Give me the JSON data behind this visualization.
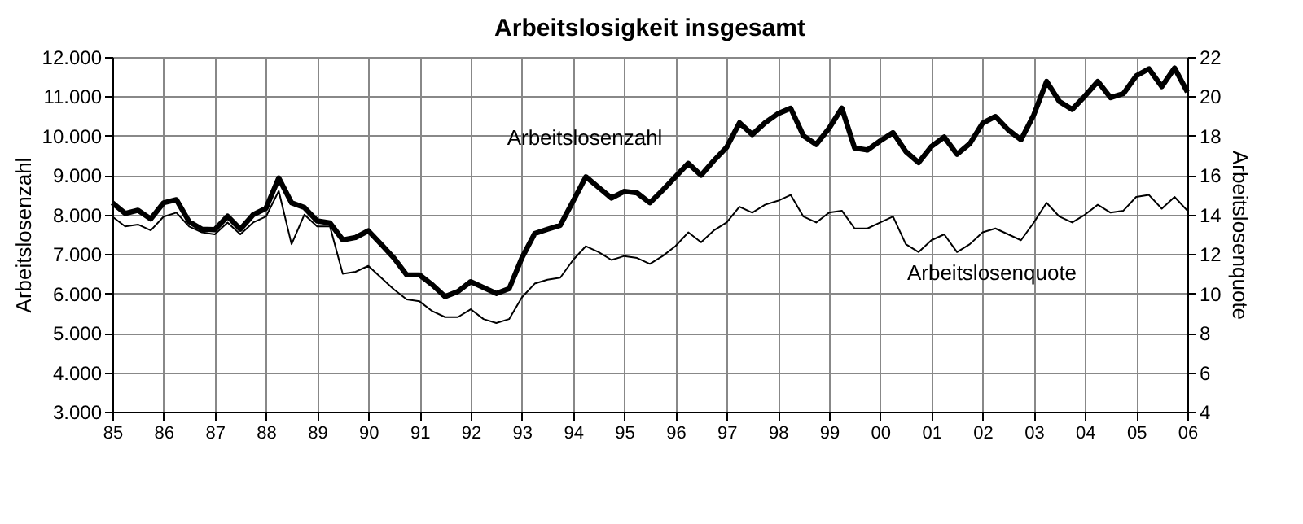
{
  "chart_data": {
    "type": "line",
    "title": "Arbeitslosigkeit insgesamt",
    "ylabel": "Arbeitslosenzahl",
    "y2label": "Arbeitslosenquote",
    "x": [
      1985,
      1985.25,
      1985.5,
      1985.75,
      1986,
      1986.25,
      1986.5,
      1986.75,
      1987,
      1987.25,
      1987.5,
      1987.75,
      1988,
      1988.25,
      1988.5,
      1988.75,
      1989,
      1989.25,
      1989.5,
      1989.75,
      1990,
      1990.25,
      1990.5,
      1990.75,
      1991,
      1991.25,
      1991.5,
      1991.75,
      1992,
      1992.25,
      1992.5,
      1992.75,
      1993,
      1993.25,
      1993.5,
      1993.75,
      1994,
      1994.25,
      1994.5,
      1994.75,
      1995,
      1995.25,
      1995.5,
      1995.75,
      1996,
      1996.25,
      1996.5,
      1996.75,
      1997,
      1997.25,
      1997.5,
      1997.75,
      1998,
      1998.25,
      1998.5,
      1998.75,
      1999,
      1999.25,
      1999.5,
      1999.75,
      2000,
      2000.25,
      2000.5,
      2000.75,
      2001,
      2001.25,
      2001.5,
      2001.75,
      2002,
      2002.25,
      2002.5,
      2002.75,
      2003,
      2003.25,
      2003.5,
      2003.75,
      2004,
      2004.25,
      2004.5,
      2004.75,
      2005,
      2005.25,
      2005.5,
      2005.75,
      2006
    ],
    "series": [
      {
        "name": "Arbeitslosenzahl",
        "color": "#000000",
        "values": [
          8300,
          8030,
          8110,
          7890,
          8300,
          8380,
          7820,
          7630,
          7620,
          7960,
          7630,
          8000,
          8160,
          8930,
          8300,
          8180,
          7840,
          7790,
          7360,
          7420,
          7590,
          7250,
          6900,
          6470,
          6470,
          6220,
          5920,
          6050,
          6300,
          6150,
          6000,
          6120,
          6900,
          7520,
          7630,
          7730,
          8340,
          8960,
          8690,
          8420,
          8590,
          8550,
          8300,
          8620,
          8960,
          9300,
          9000,
          9370,
          9710,
          10330,
          10030,
          10330,
          10560,
          10700,
          10000,
          9780,
          10190,
          10700,
          9690,
          9640,
          9870,
          10080,
          9600,
          9320,
          9730,
          9970,
          9530,
          9800,
          10320,
          10490,
          10150,
          9900,
          10530,
          11380,
          10870,
          10670,
          11010,
          11380,
          10970,
          11070,
          11520,
          11700,
          11250,
          11720,
          11110
        ]
      },
      {
        "name": "Arbeitslosenquote",
        "color": "#000000",
        "axis": "y2",
        "values": [
          13.9,
          13.4,
          13.5,
          13.2,
          13.9,
          14.1,
          13.4,
          13.1,
          13.0,
          13.6,
          13.0,
          13.6,
          13.9,
          15.2,
          12.5,
          14.0,
          13.4,
          13.4,
          11.0,
          11.1,
          11.4,
          10.8,
          10.2,
          9.7,
          9.6,
          9.1,
          8.8,
          8.8,
          9.2,
          8.7,
          8.5,
          8.7,
          9.8,
          10.5,
          10.7,
          10.8,
          11.7,
          12.4,
          12.1,
          11.7,
          11.9,
          11.8,
          11.5,
          11.9,
          12.4,
          13.1,
          12.6,
          13.2,
          13.6,
          14.4,
          14.1,
          14.5,
          14.7,
          15.0,
          13.9,
          13.6,
          14.1,
          14.2,
          13.3,
          13.3,
          13.6,
          13.9,
          12.5,
          12.1,
          12.7,
          13.0,
          12.1,
          12.5,
          13.1,
          13.3,
          13.0,
          12.7,
          13.6,
          14.6,
          13.9,
          13.6,
          14.0,
          14.5,
          14.1,
          14.2,
          14.9,
          15.0,
          14.3,
          14.9,
          14.2
        ]
      }
    ],
    "xlim": [
      1985,
      2006
    ],
    "xticks": [
      {
        "value": 1985,
        "label": "85"
      },
      {
        "value": 1986,
        "label": "86"
      },
      {
        "value": 1987,
        "label": "87"
      },
      {
        "value": 1988,
        "label": "88"
      },
      {
        "value": 1989,
        "label": "89"
      },
      {
        "value": 1990,
        "label": "90"
      },
      {
        "value": 1991,
        "label": "91"
      },
      {
        "value": 1992,
        "label": "92"
      },
      {
        "value": 1993,
        "label": "93"
      },
      {
        "value": 1994,
        "label": "94"
      },
      {
        "value": 1995,
        "label": "95"
      },
      {
        "value": 1996,
        "label": "96"
      },
      {
        "value": 1997,
        "label": "97"
      },
      {
        "value": 1998,
        "label": "98"
      },
      {
        "value": 1999,
        "label": "99"
      },
      {
        "value": 2000,
        "label": "00"
      },
      {
        "value": 2001,
        "label": "01"
      },
      {
        "value": 2002,
        "label": "02"
      },
      {
        "value": 2003,
        "label": "03"
      },
      {
        "value": 2004,
        "label": "04"
      },
      {
        "value": 2005,
        "label": "05"
      },
      {
        "value": 2006,
        "label": "06"
      }
    ],
    "ylim": [
      3000,
      12000
    ],
    "yticks": [
      {
        "value": 3000,
        "label": "3.000"
      },
      {
        "value": 4000,
        "label": "4.000"
      },
      {
        "value": 5000,
        "label": "5.000"
      },
      {
        "value": 6000,
        "label": "6.000"
      },
      {
        "value": 7000,
        "label": "7.000"
      },
      {
        "value": 8000,
        "label": "8.000"
      },
      {
        "value": 9000,
        "label": "9.000"
      },
      {
        "value": 10000,
        "label": "10.000"
      },
      {
        "value": 11000,
        "label": "11.000"
      },
      {
        "value": 12000,
        "label": "12.000"
      }
    ],
    "y2lim": [
      4,
      22
    ],
    "y2ticks": [
      4,
      6,
      8,
      10,
      12,
      14,
      16,
      18,
      20,
      22
    ],
    "grid": true,
    "marker": "none",
    "line_style": "solid"
  }
}
